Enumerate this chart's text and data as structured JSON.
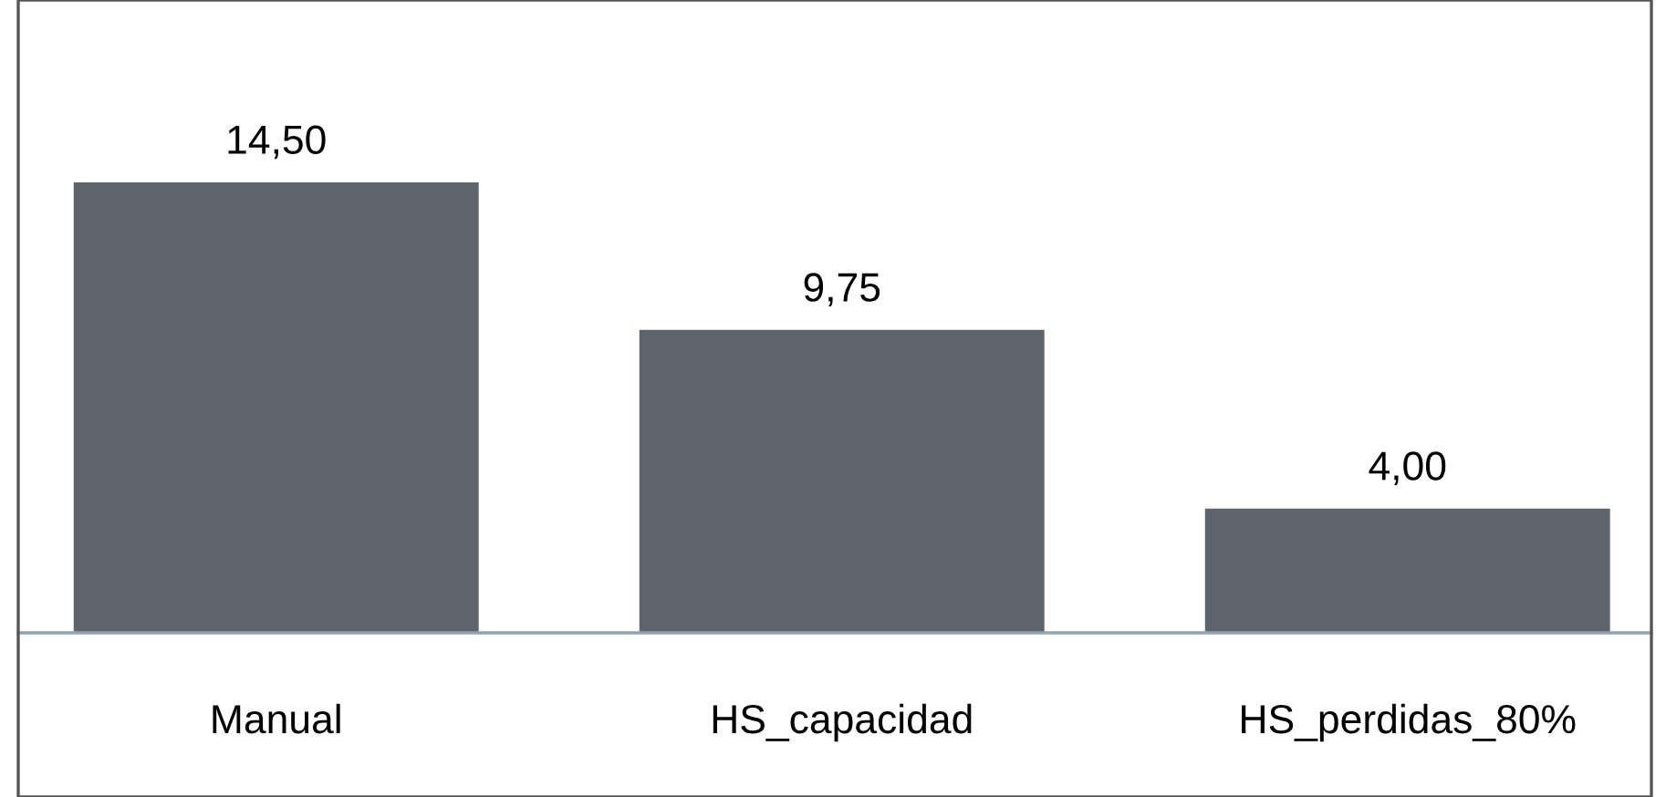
{
  "chart_data": {
    "type": "bar",
    "categories": [
      "Manual",
      "HS_capacidad",
      "HS_perdidas_80%"
    ],
    "values": [
      14.5,
      9.75,
      4.0
    ],
    "value_labels": [
      "14,50",
      "9,75",
      "4,00"
    ],
    "color": "#5f636b",
    "grid": false,
    "legend": false
  }
}
